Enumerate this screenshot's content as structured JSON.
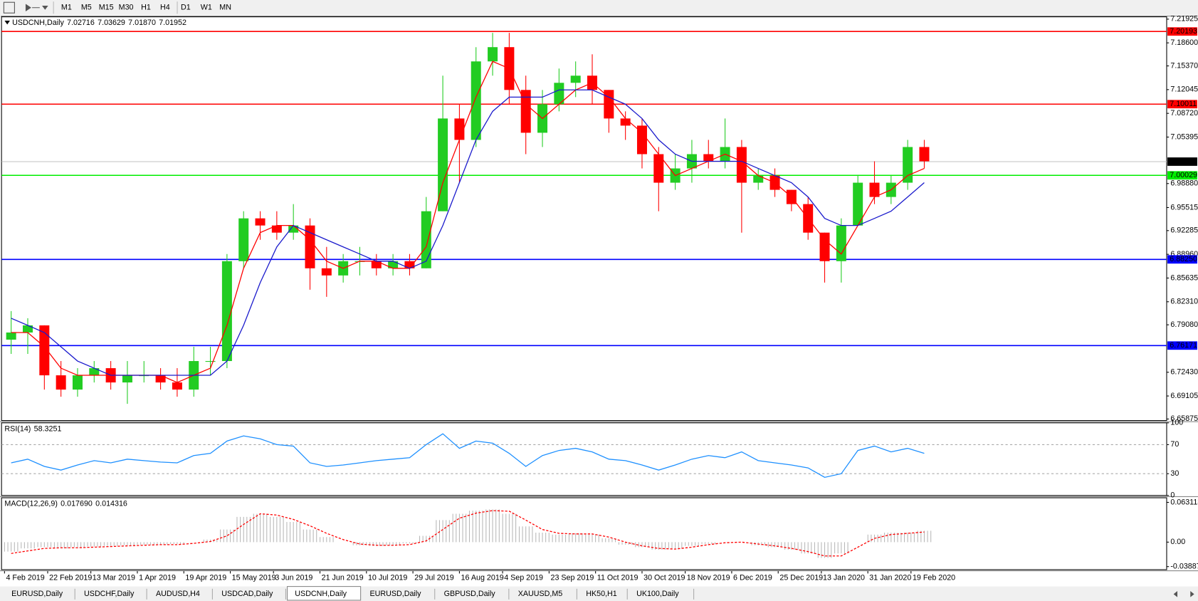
{
  "toolbar": {
    "timeframes": [
      "M1",
      "M5",
      "M15",
      "M30",
      "H1",
      "H4",
      "D1",
      "W1",
      "MN"
    ]
  },
  "tabs": [
    "EURUSD,Daily",
    "USDCHF,Daily",
    "AUDUSD,H4",
    "USDCAD,Daily",
    "USDCNH,Daily",
    "EURUSD,Daily",
    "GBPUSD,Daily",
    "XAUUSD,M5",
    "HK50,H1",
    "UK100,Daily"
  ],
  "active_tab": 4,
  "chart_data": [
    {
      "type": "candlestick",
      "title": "USDCNH,Daily",
      "last_bar": [
        7.02716,
        7.03629,
        {
          "value": 7.0187,
          "label": "7.01870"
        },
        7.01952
      ],
      "up_color": "#22cc22",
      "down_color": "#ff0000",
      "x": [
        2,
        7,
        12,
        17,
        22,
        27,
        32,
        37,
        42,
        47,
        52,
        57,
        62,
        67,
        72,
        77,
        82,
        87,
        92,
        97,
        102,
        107,
        112,
        117,
        122,
        127,
        132,
        137,
        142,
        147,
        152,
        157,
        162,
        167,
        172,
        177,
        182,
        187,
        192,
        197,
        202,
        207,
        212,
        217,
        222,
        227,
        232,
        237,
        242,
        247,
        252,
        257,
        262,
        267,
        272,
        277
      ],
      "open": [
        6.77,
        6.78,
        6.79,
        6.72,
        6.7,
        6.72,
        6.73,
        6.71,
        6.72,
        6.72,
        6.71,
        6.7,
        6.74,
        6.74,
        6.88,
        6.94,
        6.93,
        6.92,
        6.93,
        6.87,
        6.86,
        6.88,
        6.88,
        6.87,
        6.88,
        6.87,
        6.95,
        7.08,
        7.05,
        7.16,
        7.18,
        7.12,
        7.06,
        7.1,
        7.13,
        7.14,
        7.12,
        7.08,
        7.07,
        7.03,
        6.99,
        7.01,
        7.03,
        7.02,
        7.04,
        6.99,
        7.0,
        6.98,
        6.96,
        6.92,
        6.88,
        6.93,
        6.99,
        6.97,
        6.99,
        7.04
      ],
      "high": [
        6.81,
        6.8,
        6.79,
        6.74,
        6.73,
        6.74,
        6.74,
        6.74,
        6.74,
        6.73,
        6.73,
        6.76,
        6.76,
        6.89,
        6.95,
        6.95,
        6.95,
        6.96,
        6.94,
        6.9,
        6.89,
        6.9,
        6.89,
        6.89,
        6.89,
        6.97,
        7.14,
        7.1,
        7.18,
        7.2,
        7.2,
        7.14,
        7.12,
        7.15,
        7.16,
        7.17,
        7.12,
        7.09,
        7.08,
        7.04,
        7.03,
        7.05,
        7.05,
        7.08,
        7.05,
        7.01,
        7.01,
        6.98,
        6.97,
        6.92,
        6.94,
        7.0,
        7.02,
        7.0,
        7.05,
        7.05
      ],
      "low": [
        6.75,
        6.75,
        6.7,
        6.69,
        6.69,
        6.71,
        6.7,
        6.68,
        6.71,
        6.7,
        6.69,
        6.69,
        6.72,
        6.73,
        6.87,
        6.91,
        6.91,
        6.91,
        6.84,
        6.83,
        6.85,
        6.86,
        6.86,
        6.86,
        6.86,
        6.87,
        6.95,
        6.99,
        7.04,
        7.14,
        7.1,
        7.03,
        7.04,
        7.09,
        7.11,
        7.1,
        7.06,
        7.05,
        7.01,
        6.95,
        6.98,
        6.99,
        7.01,
        7.01,
        6.92,
        6.98,
        6.97,
        6.95,
        6.91,
        6.85,
        6.85,
        6.93,
        6.96,
        6.96,
        6.98,
        7.01
      ],
      "close": [
        6.78,
        6.79,
        6.72,
        6.7,
        6.72,
        6.73,
        6.71,
        6.72,
        6.72,
        6.71,
        6.7,
        6.74,
        6.74,
        6.88,
        6.94,
        6.93,
        6.92,
        6.93,
        6.87,
        6.86,
        6.88,
        6.88,
        6.87,
        6.88,
        6.87,
        6.95,
        7.08,
        7.05,
        7.16,
        7.18,
        7.12,
        7.06,
        7.1,
        7.13,
        7.14,
        7.12,
        7.08,
        7.07,
        7.03,
        6.99,
        7.01,
        7.03,
        7.02,
        7.04,
        6.99,
        7.0,
        6.98,
        6.96,
        6.92,
        6.88,
        6.93,
        6.99,
        6.97,
        6.99,
        7.04,
        7.02
      ],
      "series": [
        {
          "color": "#ff0000",
          "values": [
            6.78,
            6.78,
            6.76,
            6.73,
            6.72,
            6.72,
            6.72,
            6.72,
            6.72,
            6.72,
            6.71,
            6.72,
            6.73,
            6.79,
            6.87,
            6.92,
            6.93,
            6.93,
            6.91,
            6.88,
            6.87,
            6.88,
            6.88,
            6.87,
            6.87,
            6.9,
            6.99,
            7.05,
            7.11,
            7.16,
            7.15,
            7.1,
            7.08,
            7.1,
            7.12,
            7.13,
            7.11,
            7.08,
            7.06,
            7.03,
            7.0,
            7.01,
            7.02,
            7.03,
            7.02,
            7.0,
            6.99,
            6.97,
            6.94,
            6.91,
            6.89,
            6.93,
            6.97,
            6.98,
            7.0,
            7.01
          ]
        },
        {
          "color": "#1a1acc",
          "values": [
            6.8,
            6.79,
            6.78,
            6.76,
            6.74,
            6.73,
            6.72,
            6.72,
            6.72,
            6.72,
            6.72,
            6.72,
            6.72,
            6.74,
            6.79,
            6.85,
            6.9,
            6.93,
            6.92,
            6.91,
            6.9,
            6.89,
            6.88,
            6.88,
            6.87,
            6.88,
            6.93,
            6.99,
            7.05,
            7.09,
            7.11,
            7.11,
            7.11,
            7.12,
            7.12,
            7.12,
            7.11,
            7.1,
            7.08,
            7.05,
            7.03,
            7.02,
            7.02,
            7.02,
            7.02,
            7.01,
            7.0,
            6.99,
            6.97,
            6.94,
            6.93,
            6.93,
            6.94,
            6.95,
            6.97,
            6.99
          ]
        }
      ],
      "levels": [
        {
          "value": 7.20193,
          "color": "#ff0000"
        },
        {
          "value": 7.10011,
          "color": "#ff0000"
        },
        {
          "value": 7.00029,
          "color": "#00ee00"
        },
        {
          "value": 6.8825,
          "label": "6.88250",
          "color": "#0000ff"
        },
        {
          "value": 6.76171,
          "color": "#0000ff"
        }
      ],
      "last_price_color": "#c0c0c0",
      "xlim": [
        -0.9,
        350
      ],
      "ylim": [
        6.6566,
        7.2225
      ],
      "xticks": [
        {
          "value": 0,
          "label": "4 Feb 2019"
        },
        {
          "value": 13,
          "label": "22 Feb 2019"
        },
        {
          "value": 26,
          "label": "13 Mar 2019"
        },
        {
          "value": 40,
          "label": "1 Apr 2019"
        },
        {
          "value": 54,
          "label": "19 Apr 2019"
        },
        {
          "value": 68,
          "label": "15 May 2019"
        },
        {
          "value": 81,
          "label": "3 Jun 2019"
        },
        {
          "value": 95,
          "label": "21 Jun 2019"
        },
        {
          "value": 109,
          "label": "10 Jul 2019"
        },
        {
          "value": 123,
          "label": "29 Jul 2019"
        },
        {
          "value": 137,
          "label": "16 Aug 2019"
        },
        {
          "value": 150,
          "label": "4 Sep 2019"
        },
        {
          "value": 164,
          "label": "23 Sep 2019"
        },
        {
          "value": 178,
          "label": "11 Oct 2019"
        },
        {
          "value": 192,
          "label": "30 Oct 2019"
        },
        {
          "value": 205,
          "label": "18 Nov 2019"
        },
        {
          "value": 219,
          "label": "6 Dec 2019"
        },
        {
          "value": 233,
          "label": "25 Dec 2019"
        },
        {
          "value": 246,
          "label": "13 Jan 2020"
        },
        {
          "value": 260,
          "label": "31 Jan 2020"
        },
        {
          "value": 273,
          "label": "19 Feb 2020"
        }
      ],
      "yticks": [
        7.21925,
        {
          "value": 7.186,
          "label": "7.18600"
        },
        {
          "value": 7.1537,
          "label": "7.15370"
        },
        7.12045,
        {
          "value": 7.0872,
          "label": "7.08720"
        },
        7.05395,
        {
          "value": 6.9888,
          "label": "6.98880"
        },
        6.95515,
        6.92285,
        {
          "value": 6.8896,
          "label": "6.88960"
        },
        6.85635,
        {
          "value": 6.8231,
          "label": "6.82310"
        },
        {
          "value": 6.7908,
          "label": "6.79080"
        },
        {
          "value": 6.7243,
          "label": "6.72430"
        },
        6.69105,
        6.65875
      ]
    },
    {
      "type": "line",
      "title": "RSI(14)",
      "value": 58.3251,
      "color": "#1e90ff",
      "values": [
        45,
        50,
        40,
        35,
        42,
        48,
        45,
        50,
        48,
        46,
        45,
        55,
        58,
        75,
        82,
        78,
        70,
        68,
        45,
        40,
        42,
        45,
        48,
        50,
        52,
        70,
        85,
        65,
        75,
        72,
        58,
        40,
        55,
        62,
        65,
        60,
        50,
        48,
        42,
        35,
        42,
        50,
        55,
        52,
        60,
        48,
        45,
        42,
        38,
        25,
        30,
        62,
        68,
        60,
        65,
        58
      ],
      "ylim": [
        0,
        100
      ],
      "yticks": [
        0,
        30,
        70,
        100
      ],
      "levels": [
        30,
        70
      ]
    },
    {
      "type": "combo",
      "title": "MACD(12,26,9)",
      "value": [
        {
          "value": 0.01769,
          "label": "0.017690"
        },
        0.014316
      ],
      "series": [
        {
          "kind": "bar",
          "color": "#b8b8b8",
          "values": [
            -0.015,
            -0.01,
            -0.008,
            -0.01,
            -0.008,
            -0.007,
            -0.006,
            -0.005,
            -0.004,
            -0.004,
            -0.003,
            0.0,
            0.004,
            0.02,
            0.04,
            0.045,
            0.04,
            0.032,
            0.02,
            0.008,
            0.0,
            -0.005,
            -0.006,
            -0.005,
            -0.002,
            0.01,
            0.035,
            0.045,
            0.05,
            0.052,
            0.045,
            0.025,
            0.015,
            0.012,
            0.014,
            0.012,
            0.006,
            -0.004,
            -0.008,
            -0.012,
            -0.01,
            -0.006,
            -0.003,
            0.0,
            0.0,
            -0.005,
            -0.008,
            -0.012,
            -0.018,
            -0.025,
            -0.018,
            0.0,
            0.012,
            0.015,
            0.015,
            0.018
          ]
        },
        {
          "kind": "line",
          "dashed": true,
          "color": "#ff0000",
          "values": [
            -0.018,
            -0.014,
            -0.01,
            -0.009,
            -0.009,
            -0.008,
            -0.007,
            -0.006,
            -0.005,
            -0.004,
            -0.004,
            -0.002,
            0.001,
            0.01,
            0.028,
            0.045,
            0.043,
            0.036,
            0.026,
            0.014,
            0.004,
            -0.003,
            -0.005,
            -0.005,
            -0.004,
            0.002,
            0.02,
            0.038,
            0.046,
            0.05,
            0.049,
            0.035,
            0.02,
            0.014,
            0.013,
            0.013,
            0.008,
            0.0,
            -0.006,
            -0.01,
            -0.011,
            -0.008,
            -0.004,
            -0.001,
            0.0,
            -0.003,
            -0.006,
            -0.01,
            -0.015,
            -0.022,
            -0.022,
            -0.008,
            0.006,
            0.012,
            0.014,
            0.016
          ]
        }
      ],
      "ylim": [
        -0.0437,
        0.0704
      ],
      "yticks": [
        -0.038872,
        {
          "value": 0,
          "label": "0.00"
        },
        0.063113
      ]
    }
  ]
}
